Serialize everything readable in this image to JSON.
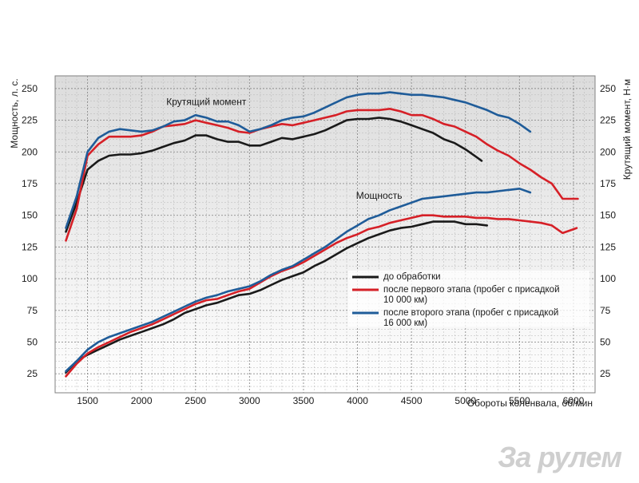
{
  "chart_data": {
    "type": "line",
    "xlabel": "Обороты коленвала, об/мин",
    "ylabel_left": "Мощность, л. с.",
    "ylabel_right": "Крутящий момент, Н·м",
    "xlim": [
      1200,
      6200
    ],
    "ylim": [
      10,
      260
    ],
    "x_ticks": [
      1500,
      2000,
      2500,
      3000,
      3500,
      4000,
      4500,
      5000,
      5500,
      6000
    ],
    "y_ticks": [
      25,
      50,
      75,
      100,
      125,
      150,
      175,
      200,
      225,
      250
    ],
    "grid": true,
    "legend_position": "center-right",
    "annotations": [
      {
        "text": "Крутящий момент",
        "x": 2600,
        "y": 237
      },
      {
        "text": "Мощность",
        "x": 4200,
        "y": 163
      }
    ],
    "legend": [
      {
        "label_lines": [
          "до обработки"
        ],
        "color": "#1a1a1a"
      },
      {
        "label_lines": [
          "после первого этапа (пробег с присадкой",
          "10 000 км)"
        ],
        "color": "#d62027"
      },
      {
        "label_lines": [
          "после второго этапа (пробег с присадкой",
          "16 000 км)"
        ],
        "color": "#1f5c99"
      }
    ],
    "series": [
      {
        "group": "torque",
        "legend_index": 0,
        "color": "#1a1a1a",
        "points": [
          [
            1300,
            137
          ],
          [
            1400,
            160
          ],
          [
            1500,
            186
          ],
          [
            1600,
            193
          ],
          [
            1700,
            197
          ],
          [
            1800,
            198
          ],
          [
            1900,
            198
          ],
          [
            2000,
            199
          ],
          [
            2100,
            201
          ],
          [
            2200,
            204
          ],
          [
            2300,
            207
          ],
          [
            2400,
            209
          ],
          [
            2500,
            213
          ],
          [
            2600,
            213
          ],
          [
            2700,
            210
          ],
          [
            2800,
            208
          ],
          [
            2900,
            208
          ],
          [
            3000,
            205
          ],
          [
            3100,
            205
          ],
          [
            3200,
            208
          ],
          [
            3300,
            211
          ],
          [
            3400,
            210
          ],
          [
            3500,
            212
          ],
          [
            3600,
            214
          ],
          [
            3700,
            217
          ],
          [
            3800,
            221
          ],
          [
            3900,
            225
          ],
          [
            4000,
            226
          ],
          [
            4100,
            226
          ],
          [
            4200,
            227
          ],
          [
            4300,
            226
          ],
          [
            4400,
            224
          ],
          [
            4500,
            221
          ],
          [
            4600,
            218
          ],
          [
            4700,
            215
          ],
          [
            4800,
            210
          ],
          [
            4900,
            207
          ],
          [
            5000,
            202
          ],
          [
            5100,
            196
          ],
          [
            5150,
            193
          ]
        ]
      },
      {
        "group": "torque",
        "legend_index": 1,
        "color": "#d62027",
        "points": [
          [
            1300,
            130
          ],
          [
            1400,
            155
          ],
          [
            1500,
            197
          ],
          [
            1600,
            206
          ],
          [
            1700,
            212
          ],
          [
            1800,
            212
          ],
          [
            1900,
            212
          ],
          [
            2000,
            213
          ],
          [
            2100,
            216
          ],
          [
            2200,
            220
          ],
          [
            2300,
            221
          ],
          [
            2400,
            222
          ],
          [
            2500,
            225
          ],
          [
            2600,
            223
          ],
          [
            2700,
            221
          ],
          [
            2800,
            219
          ],
          [
            2900,
            216
          ],
          [
            3000,
            215
          ],
          [
            3100,
            218
          ],
          [
            3200,
            220
          ],
          [
            3300,
            222
          ],
          [
            3400,
            221
          ],
          [
            3500,
            223
          ],
          [
            3600,
            225
          ],
          [
            3700,
            227
          ],
          [
            3800,
            229
          ],
          [
            3900,
            232
          ],
          [
            4000,
            233
          ],
          [
            4100,
            233
          ],
          [
            4200,
            233
          ],
          [
            4300,
            234
          ],
          [
            4400,
            232
          ],
          [
            4500,
            229
          ],
          [
            4600,
            229
          ],
          [
            4700,
            226
          ],
          [
            4800,
            222
          ],
          [
            4900,
            220
          ],
          [
            5000,
            216
          ],
          [
            5100,
            212
          ],
          [
            5200,
            206
          ],
          [
            5300,
            201
          ],
          [
            5400,
            197
          ],
          [
            5500,
            191
          ],
          [
            5600,
            186
          ],
          [
            5700,
            180
          ],
          [
            5800,
            175
          ],
          [
            5900,
            163
          ],
          [
            6000,
            163
          ],
          [
            6040,
            163
          ]
        ]
      },
      {
        "group": "torque",
        "legend_index": 2,
        "color": "#1f5c99",
        "points": [
          [
            1300,
            140
          ],
          [
            1400,
            165
          ],
          [
            1500,
            200
          ],
          [
            1600,
            211
          ],
          [
            1700,
            216
          ],
          [
            1800,
            218
          ],
          [
            1900,
            217
          ],
          [
            2000,
            216
          ],
          [
            2100,
            217
          ],
          [
            2200,
            220
          ],
          [
            2300,
            224
          ],
          [
            2400,
            225
          ],
          [
            2500,
            229
          ],
          [
            2600,
            227
          ],
          [
            2700,
            224
          ],
          [
            2800,
            224
          ],
          [
            2900,
            221
          ],
          [
            3000,
            216
          ],
          [
            3100,
            218
          ],
          [
            3200,
            221
          ],
          [
            3300,
            225
          ],
          [
            3400,
            227
          ],
          [
            3500,
            228
          ],
          [
            3600,
            231
          ],
          [
            3700,
            235
          ],
          [
            3800,
            239
          ],
          [
            3900,
            243
          ],
          [
            4000,
            245
          ],
          [
            4100,
            246
          ],
          [
            4200,
            246
          ],
          [
            4300,
            247
          ],
          [
            4400,
            246
          ],
          [
            4500,
            245
          ],
          [
            4600,
            245
          ],
          [
            4700,
            244
          ],
          [
            4800,
            243
          ],
          [
            4900,
            241
          ],
          [
            5000,
            239
          ],
          [
            5100,
            236
          ],
          [
            5200,
            233
          ],
          [
            5300,
            229
          ],
          [
            5400,
            227
          ],
          [
            5500,
            222
          ],
          [
            5600,
            216
          ]
        ]
      },
      {
        "group": "power",
        "legend_index": 0,
        "color": "#1a1a1a",
        "points": [
          [
            1300,
            26
          ],
          [
            1400,
            35
          ],
          [
            1500,
            40
          ],
          [
            1600,
            44
          ],
          [
            1700,
            48
          ],
          [
            1800,
            52
          ],
          [
            1900,
            55
          ],
          [
            2000,
            58
          ],
          [
            2100,
            61
          ],
          [
            2200,
            64
          ],
          [
            2300,
            68
          ],
          [
            2400,
            73
          ],
          [
            2500,
            76
          ],
          [
            2600,
            79
          ],
          [
            2700,
            81
          ],
          [
            2800,
            84
          ],
          [
            2900,
            87
          ],
          [
            3000,
            88
          ],
          [
            3100,
            91
          ],
          [
            3200,
            95
          ],
          [
            3300,
            99
          ],
          [
            3400,
            102
          ],
          [
            3500,
            105
          ],
          [
            3600,
            110
          ],
          [
            3700,
            114
          ],
          [
            3800,
            119
          ],
          [
            3900,
            124
          ],
          [
            4000,
            128
          ],
          [
            4100,
            132
          ],
          [
            4200,
            135
          ],
          [
            4300,
            138
          ],
          [
            4400,
            140
          ],
          [
            4500,
            141
          ],
          [
            4600,
            143
          ],
          [
            4700,
            145
          ],
          [
            4800,
            145
          ],
          [
            4900,
            145
          ],
          [
            5000,
            143
          ],
          [
            5100,
            143
          ],
          [
            5200,
            142
          ]
        ]
      },
      {
        "group": "power",
        "legend_index": 1,
        "color": "#d62027",
        "points": [
          [
            1300,
            23
          ],
          [
            1400,
            33
          ],
          [
            1500,
            41
          ],
          [
            1600,
            46
          ],
          [
            1700,
            50
          ],
          [
            1800,
            54
          ],
          [
            1900,
            58
          ],
          [
            2000,
            61
          ],
          [
            2100,
            64
          ],
          [
            2200,
            68
          ],
          [
            2300,
            72
          ],
          [
            2400,
            76
          ],
          [
            2500,
            80
          ],
          [
            2600,
            83
          ],
          [
            2700,
            84
          ],
          [
            2800,
            87
          ],
          [
            2900,
            90
          ],
          [
            3000,
            92
          ],
          [
            3100,
            97
          ],
          [
            3200,
            102
          ],
          [
            3300,
            106
          ],
          [
            3400,
            109
          ],
          [
            3500,
            113
          ],
          [
            3600,
            118
          ],
          [
            3700,
            123
          ],
          [
            3800,
            128
          ],
          [
            3900,
            132
          ],
          [
            4000,
            135
          ],
          [
            4100,
            139
          ],
          [
            4200,
            141
          ],
          [
            4300,
            144
          ],
          [
            4400,
            146
          ],
          [
            4500,
            148
          ],
          [
            4600,
            150
          ],
          [
            4700,
            150
          ],
          [
            4800,
            149
          ],
          [
            4900,
            149
          ],
          [
            5000,
            149
          ],
          [
            5100,
            148
          ],
          [
            5200,
            148
          ],
          [
            5300,
            147
          ],
          [
            5400,
            147
          ],
          [
            5500,
            146
          ],
          [
            5600,
            145
          ],
          [
            5700,
            144
          ],
          [
            5800,
            142
          ],
          [
            5900,
            136
          ],
          [
            6000,
            139
          ],
          [
            6030,
            140
          ]
        ]
      },
      {
        "group": "power",
        "legend_index": 2,
        "color": "#1f5c99",
        "points": [
          [
            1300,
            27
          ],
          [
            1400,
            35
          ],
          [
            1500,
            44
          ],
          [
            1600,
            50
          ],
          [
            1700,
            54
          ],
          [
            1800,
            57
          ],
          [
            1900,
            60
          ],
          [
            2000,
            63
          ],
          [
            2100,
            66
          ],
          [
            2200,
            70
          ],
          [
            2300,
            74
          ],
          [
            2400,
            78
          ],
          [
            2500,
            82
          ],
          [
            2600,
            85
          ],
          [
            2700,
            87
          ],
          [
            2800,
            90
          ],
          [
            2900,
            92
          ],
          [
            3000,
            94
          ],
          [
            3100,
            98
          ],
          [
            3200,
            103
          ],
          [
            3300,
            107
          ],
          [
            3400,
            110
          ],
          [
            3500,
            115
          ],
          [
            3600,
            120
          ],
          [
            3700,
            125
          ],
          [
            3800,
            131
          ],
          [
            3900,
            137
          ],
          [
            4000,
            142
          ],
          [
            4100,
            147
          ],
          [
            4200,
            150
          ],
          [
            4300,
            154
          ],
          [
            4400,
            157
          ],
          [
            4500,
            160
          ],
          [
            4600,
            163
          ],
          [
            4700,
            164
          ],
          [
            4800,
            165
          ],
          [
            4900,
            166
          ],
          [
            5000,
            167
          ],
          [
            5100,
            168
          ],
          [
            5200,
            168
          ],
          [
            5300,
            169
          ],
          [
            5400,
            170
          ],
          [
            5500,
            171
          ],
          [
            5600,
            168
          ]
        ]
      }
    ]
  },
  "watermark": {
    "text": "За рулем"
  }
}
